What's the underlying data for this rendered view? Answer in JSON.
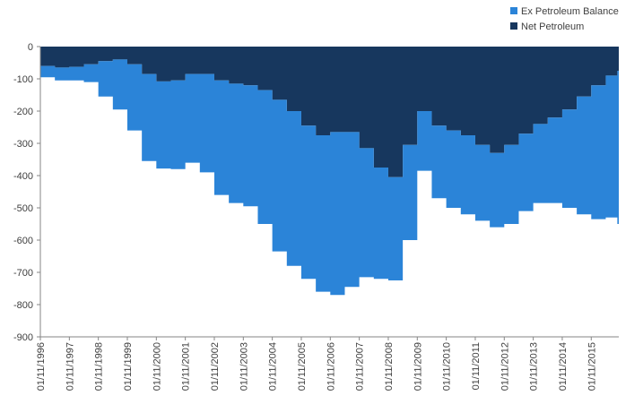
{
  "chart_data": {
    "type": "area",
    "title": "",
    "xlabel": "",
    "ylabel": "",
    "ylim": [
      -900,
      0
    ],
    "yticks": [
      0,
      -100,
      -200,
      -300,
      -400,
      -500,
      -600,
      -700,
      -800,
      -900
    ],
    "grid": false,
    "legend_position": "top-right",
    "stacked": true,
    "x_tick_labels": [
      "01/11/1996",
      "01/11/1997",
      "01/11/1998",
      "01/11/1999",
      "01/11/2000",
      "01/11/2001",
      "01/11/2002",
      "01/11/2003",
      "01/11/2004",
      "01/11/2005",
      "01/11/2006",
      "01/11/2007",
      "01/11/2008",
      "01/11/2009",
      "01/11/2010",
      "01/11/2011",
      "01/11/2012",
      "01/11/2013",
      "01/11/2014",
      "01/11/2015"
    ],
    "x": [
      1996.0,
      1996.5,
      1997.0,
      1997.5,
      1998.0,
      1998.5,
      1999.0,
      1999.5,
      2000.0,
      2000.5,
      2001.0,
      2001.5,
      2002.0,
      2002.5,
      2003.0,
      2003.5,
      2004.0,
      2004.5,
      2005.0,
      2005.5,
      2006.0,
      2006.5,
      2007.0,
      2007.5,
      2008.0,
      2008.5,
      2009.0,
      2009.5,
      2010.0,
      2010.5,
      2011.0,
      2011.5,
      2012.0,
      2012.5,
      2013.0,
      2013.5,
      2014.0,
      2014.5,
      2015.0,
      2015.5,
      2015.9
    ],
    "series": [
      {
        "name": "Net Petroleum",
        "color": "#17375E",
        "values": [
          -60,
          -65,
          -63,
          -55,
          -45,
          -40,
          -55,
          -85,
          -108,
          -105,
          -85,
          -85,
          -105,
          -115,
          -120,
          -135,
          -165,
          -200,
          -245,
          -275,
          -265,
          -265,
          -315,
          -375,
          -405,
          -305,
          -200,
          -245,
          -260,
          -275,
          -305,
          -330,
          -305,
          -270,
          -240,
          -220,
          -195,
          -155,
          -120,
          -90,
          -75
        ]
      },
      {
        "name": "Ex Petroleum Balance",
        "color": "#2B84D8",
        "values": [
          -35,
          -40,
          -42,
          -55,
          -110,
          -155,
          -205,
          -270,
          -270,
          -275,
          -275,
          -305,
          -355,
          -370,
          -375,
          -415,
          -470,
          -480,
          -475,
          -485,
          -505,
          -480,
          -400,
          -345,
          -320,
          -295,
          -185,
          -225,
          -240,
          -245,
          -235,
          -230,
          -245,
          -240,
          -245,
          -265,
          -305,
          -365,
          -415,
          -440,
          -475
        ]
      }
    ]
  },
  "legend": {
    "items": [
      {
        "label": "Ex Petroleum Balance",
        "color": "#2B84D8"
      },
      {
        "label": "Net Petroleum",
        "color": "#17375E"
      }
    ]
  }
}
